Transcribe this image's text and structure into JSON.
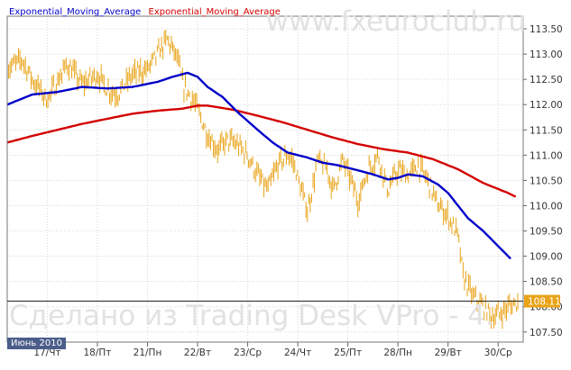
{
  "chart_data": {
    "type": "line",
    "title": "",
    "watermark_top": "www.fxeuroclub.ru",
    "watermark_bottom": "Сделано из Trading Desk VPro - 4.",
    "month_label": "Июнь 2010",
    "current_price_label": "108.11",
    "current_price": 108.11,
    "ylim": [
      107.3,
      113.75
    ],
    "yticks": [
      "107.50",
      "108.00",
      "108.50",
      "109.00",
      "109.50",
      "110.00",
      "110.50",
      "111.00",
      "111.50",
      "112.00",
      "112.50",
      "113.00",
      "113.50"
    ],
    "ytick_values": [
      107.5,
      108.0,
      108.5,
      109.0,
      109.5,
      110.0,
      110.5,
      111.0,
      111.5,
      112.0,
      112.5,
      113.0,
      113.5
    ],
    "xtick_labels": [
      "17/Чт",
      "18/Пт",
      "21/Пн",
      "22/Вт",
      "23/Ср",
      "24/Чт",
      "25/Пт",
      "28/Пн",
      "29/Вт",
      "30/Ср"
    ],
    "xtick_positions": [
      0.8,
      1.8,
      2.8,
      3.8,
      4.8,
      5.8,
      6.8,
      7.8,
      8.8,
      9.8
    ],
    "xlim": [
      0,
      10.3
    ],
    "grid": true,
    "colors": {
      "price": "#e8a317",
      "ema_fast": "#0000c8",
      "ema_slow": "#d40000"
    },
    "legend": [
      {
        "label": "Exponential_Moving_Average",
        "color": "#0000c8"
      },
      {
        "label": "Exponential_Moving_Average",
        "color": "#d40000"
      }
    ],
    "price_series": {
      "x": [
        0,
        0.3,
        0.5,
        0.8,
        1.2,
        1.5,
        1.8,
        2.0,
        2.2,
        2.5,
        2.8,
        3.0,
        3.2,
        3.4,
        3.5,
        3.7,
        3.8,
        4.0,
        4.2,
        4.4,
        4.6,
        4.8,
        5.0,
        5.2,
        5.4,
        5.6,
        5.7,
        5.9,
        6.0,
        6.2,
        6.4,
        6.5,
        6.7,
        6.9,
        7.0,
        7.2,
        7.4,
        7.6,
        7.8,
        8.0,
        8.2,
        8.4,
        8.6,
        8.8,
        9.0,
        9.1,
        9.3,
        9.5,
        9.7,
        9.9,
        10.0,
        10.2
      ],
      "y": [
        112.7,
        112.9,
        112.5,
        112.1,
        112.8,
        112.4,
        112.6,
        112.3,
        112.2,
        112.6,
        112.7,
        113.0,
        113.3,
        112.9,
        112.4,
        112.1,
        111.9,
        111.4,
        111.1,
        111.3,
        111.2,
        111.0,
        110.6,
        110.3,
        110.8,
        111.0,
        110.9,
        110.2,
        109.9,
        110.9,
        110.7,
        110.3,
        110.9,
        110.4,
        110.1,
        110.7,
        111.0,
        110.3,
        110.7,
        110.6,
        110.8,
        110.5,
        110.0,
        109.8,
        109.4,
        108.6,
        108.2,
        108.0,
        107.8,
        107.9,
        108.0,
        108.1
      ],
      "amplitude": 0.18
    },
    "ema_fast": {
      "x": [
        0,
        0.5,
        1.0,
        1.5,
        2.0,
        2.5,
        3.0,
        3.3,
        3.6,
        3.8,
        4.0,
        4.3,
        4.6,
        5.0,
        5.3,
        5.6,
        6.0,
        6.3,
        6.6,
        7.0,
        7.3,
        7.6,
        7.8,
        8.0,
        8.3,
        8.6,
        8.8,
        9.0,
        9.2,
        9.5,
        9.8,
        10.1
      ],
      "y": [
        112.0,
        112.2,
        112.25,
        112.35,
        112.32,
        112.35,
        112.45,
        112.55,
        112.63,
        112.55,
        112.35,
        112.15,
        111.85,
        111.5,
        111.25,
        111.05,
        110.95,
        110.85,
        110.8,
        110.7,
        110.62,
        110.52,
        110.55,
        110.62,
        110.58,
        110.42,
        110.25,
        110.0,
        109.75,
        109.5,
        109.2,
        108.9
      ]
    },
    "ema_slow": {
      "x": [
        0,
        0.5,
        1.0,
        1.5,
        2.0,
        2.5,
        3.0,
        3.5,
        3.8,
        4.0,
        4.5,
        5.0,
        5.5,
        6.0,
        6.5,
        7.0,
        7.5,
        8.0,
        8.5,
        9.0,
        9.5,
        10.0,
        10.2
      ],
      "y": [
        111.25,
        111.38,
        111.5,
        111.62,
        111.72,
        111.82,
        111.88,
        111.92,
        111.98,
        111.98,
        111.9,
        111.78,
        111.65,
        111.5,
        111.35,
        111.22,
        111.12,
        111.05,
        110.92,
        110.72,
        110.45,
        110.25,
        110.15
      ]
    }
  }
}
